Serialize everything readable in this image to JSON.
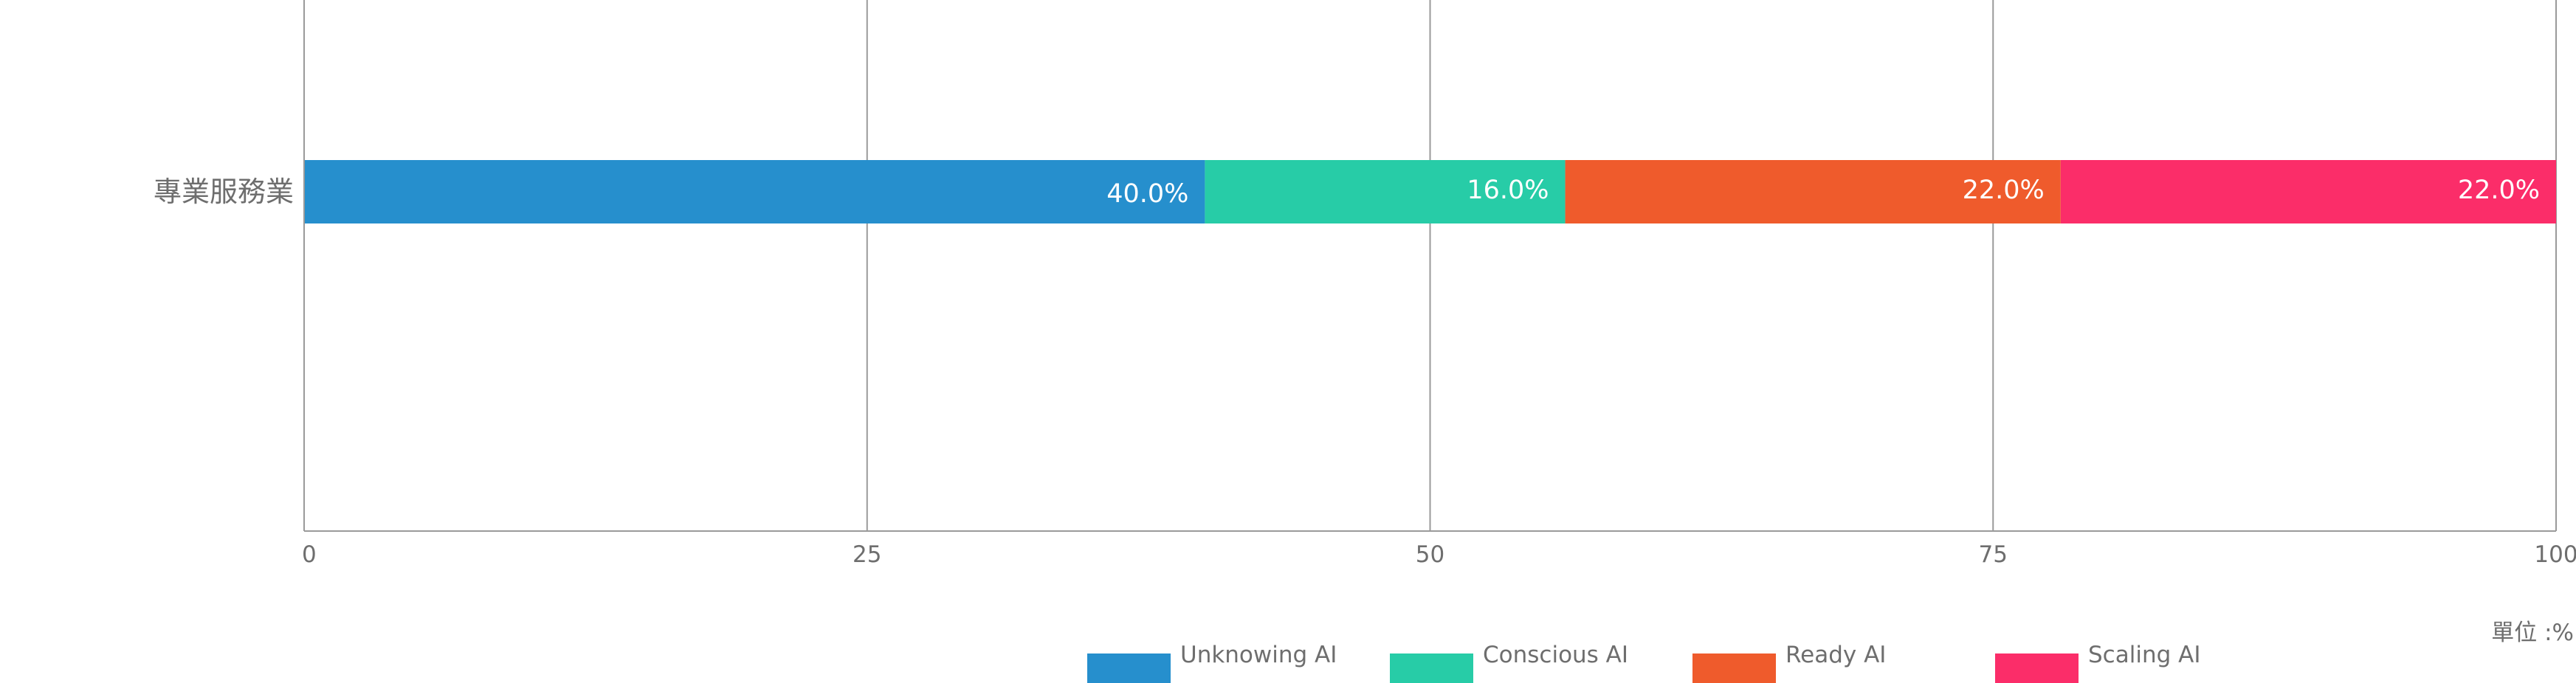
{
  "chart_data": {
    "type": "bar",
    "orientation": "horizontal",
    "stacked": true,
    "categories": [
      "專業服務業"
    ],
    "series": [
      {
        "name": "Unknowing AI",
        "values": [
          40.0
        ],
        "color": "#268fcd"
      },
      {
        "name": "Conscious AI",
        "values": [
          16.0
        ],
        "color": "#27cca7"
      },
      {
        "name": "Ready AI",
        "values": [
          22.0
        ],
        "color": "#ef5b2c"
      },
      {
        "name": "Scaling AI",
        "values": [
          22.0
        ],
        "color": "#fb2d69"
      }
    ],
    "data_labels": [
      "40.0%",
      "16.0%",
      "22.0%",
      "22.0%"
    ],
    "xlim": [
      0,
      100
    ],
    "xticks": [
      0,
      25,
      50,
      75,
      100
    ],
    "grid": "vertical",
    "legend_position": "bottom-center",
    "unit_label": "單位 :%"
  }
}
